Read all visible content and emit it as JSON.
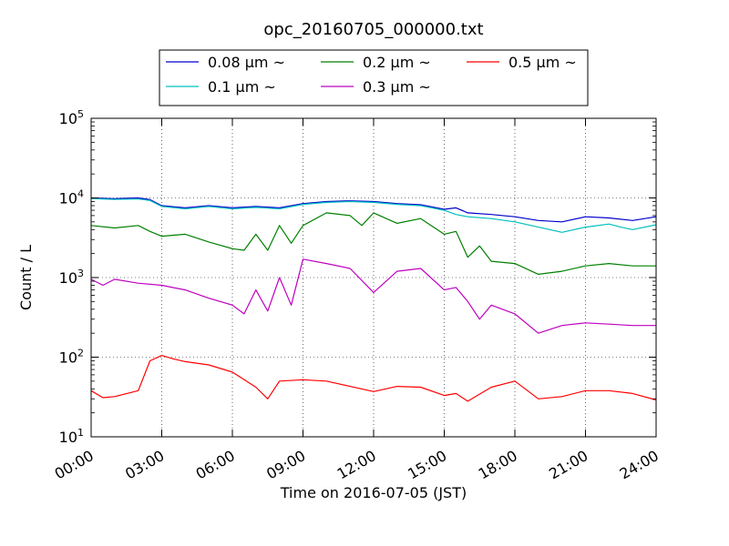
{
  "chart_data": {
    "type": "line",
    "title": "opc_20160705_000000.txt",
    "xlabel": "Time on 2016-07-05 (JST)",
    "ylabel": "Count / L",
    "xlim": [
      "00:00",
      "24:00"
    ],
    "ylim": [
      10,
      100000
    ],
    "yscale": "log",
    "grid": true,
    "legend_position": "top-center",
    "x_ticks": [
      "00:00",
      "03:00",
      "06:00",
      "09:00",
      "12:00",
      "15:00",
      "18:00",
      "21:00",
      "24:00"
    ],
    "y_ticks": [
      {
        "value": 10,
        "base": "10",
        "exp": "1"
      },
      {
        "value": 100,
        "base": "10",
        "exp": "2"
      },
      {
        "value": 1000,
        "base": "10",
        "exp": "3"
      },
      {
        "value": 10000,
        "base": "10",
        "exp": "4"
      },
      {
        "value": 100000,
        "base": "10",
        "exp": "5"
      }
    ],
    "series": [
      {
        "name": "0.08 μm ~",
        "color": "#0000cc",
        "points": [
          [
            0,
            10000
          ],
          [
            1,
            9800
          ],
          [
            2,
            10000
          ],
          [
            2.5,
            9500
          ],
          [
            3,
            8000
          ],
          [
            4,
            7500
          ],
          [
            5,
            8000
          ],
          [
            6,
            7500
          ],
          [
            7,
            7800
          ],
          [
            8,
            7500
          ],
          [
            9,
            8500
          ],
          [
            10,
            9000
          ],
          [
            11,
            9200
          ],
          [
            12,
            9000
          ],
          [
            13,
            8500
          ],
          [
            14,
            8200
          ],
          [
            15,
            7200
          ],
          [
            15.5,
            7500
          ],
          [
            16,
            6500
          ],
          [
            17,
            6200
          ],
          [
            18,
            5800
          ],
          [
            19,
            5200
          ],
          [
            20,
            5000
          ],
          [
            21,
            5800
          ],
          [
            22,
            5600
          ],
          [
            23,
            5200
          ],
          [
            24,
            5800
          ]
        ]
      },
      {
        "name": "0.1 μm ~",
        "color": "#00bfbf",
        "points": [
          [
            0,
            9800
          ],
          [
            1,
            9600
          ],
          [
            2,
            9700
          ],
          [
            2.5,
            9300
          ],
          [
            3,
            7800
          ],
          [
            4,
            7300
          ],
          [
            5,
            7800
          ],
          [
            6,
            7300
          ],
          [
            7,
            7600
          ],
          [
            8,
            7300
          ],
          [
            9,
            8300
          ],
          [
            10,
            8800
          ],
          [
            11,
            9000
          ],
          [
            12,
            8800
          ],
          [
            13,
            8300
          ],
          [
            14,
            8000
          ],
          [
            15,
            7000
          ],
          [
            15.5,
            6200
          ],
          [
            16,
            5800
          ],
          [
            17,
            5500
          ],
          [
            18,
            5000
          ],
          [
            19,
            4300
          ],
          [
            20,
            3700
          ],
          [
            21,
            4300
          ],
          [
            22,
            4700
          ],
          [
            22.5,
            4300
          ],
          [
            23,
            4000
          ],
          [
            24,
            4600
          ]
        ]
      },
      {
        "name": "0.2 μm ~",
        "color": "#008000",
        "points": [
          [
            0,
            4500
          ],
          [
            1,
            4200
          ],
          [
            2,
            4500
          ],
          [
            2.5,
            3800
          ],
          [
            3,
            3300
          ],
          [
            4,
            3500
          ],
          [
            5,
            2800
          ],
          [
            6,
            2300
          ],
          [
            6.5,
            2200
          ],
          [
            7,
            3500
          ],
          [
            7.5,
            2200
          ],
          [
            8,
            4500
          ],
          [
            8.5,
            2700
          ],
          [
            9,
            4500
          ],
          [
            10,
            6500
          ],
          [
            11,
            6000
          ],
          [
            11.5,
            4500
          ],
          [
            12,
            6500
          ],
          [
            13,
            4800
          ],
          [
            14,
            5500
          ],
          [
            15,
            3500
          ],
          [
            15.5,
            3800
          ],
          [
            16,
            1800
          ],
          [
            16.5,
            2500
          ],
          [
            17,
            1600
          ],
          [
            18,
            1500
          ],
          [
            19,
            1100
          ],
          [
            20,
            1200
          ],
          [
            21,
            1400
          ],
          [
            22,
            1500
          ],
          [
            23,
            1400
          ],
          [
            24,
            1400
          ]
        ]
      },
      {
        "name": "0.3 μm ~",
        "color": "#bf00bf",
        "points": [
          [
            0,
            950
          ],
          [
            0.5,
            800
          ],
          [
            1,
            950
          ],
          [
            2,
            850
          ],
          [
            3,
            800
          ],
          [
            4,
            700
          ],
          [
            5,
            550
          ],
          [
            6,
            450
          ],
          [
            6.5,
            350
          ],
          [
            7,
            700
          ],
          [
            7.5,
            380
          ],
          [
            8,
            1000
          ],
          [
            8.5,
            450
          ],
          [
            9,
            1700
          ],
          [
            10,
            1500
          ],
          [
            11,
            1300
          ],
          [
            12,
            650
          ],
          [
            13,
            1200
          ],
          [
            14,
            1300
          ],
          [
            15,
            700
          ],
          [
            15.5,
            750
          ],
          [
            16,
            500
          ],
          [
            16.5,
            300
          ],
          [
            17,
            450
          ],
          [
            18,
            350
          ],
          [
            19,
            200
          ],
          [
            20,
            250
          ],
          [
            21,
            270
          ],
          [
            22,
            260
          ],
          [
            23,
            250
          ],
          [
            24,
            250
          ]
        ]
      },
      {
        "name": "0.5 μm ~",
        "color": "#ff0000",
        "points": [
          [
            0,
            38
          ],
          [
            0.5,
            31
          ],
          [
            1,
            32
          ],
          [
            2,
            38
          ],
          [
            2.5,
            90
          ],
          [
            3,
            105
          ],
          [
            3.5,
            95
          ],
          [
            4,
            88
          ],
          [
            5,
            80
          ],
          [
            6,
            65
          ],
          [
            7,
            42
          ],
          [
            7.5,
            30
          ],
          [
            8,
            50
          ],
          [
            9,
            52
          ],
          [
            10,
            50
          ],
          [
            11,
            43
          ],
          [
            12,
            37
          ],
          [
            13,
            43
          ],
          [
            14,
            42
          ],
          [
            15,
            33
          ],
          [
            15.5,
            35
          ],
          [
            16,
            28
          ],
          [
            17,
            42
          ],
          [
            18,
            50
          ],
          [
            19,
            30
          ],
          [
            20,
            32
          ],
          [
            21,
            38
          ],
          [
            22,
            38
          ],
          [
            23,
            35
          ],
          [
            24,
            29
          ]
        ]
      }
    ]
  }
}
